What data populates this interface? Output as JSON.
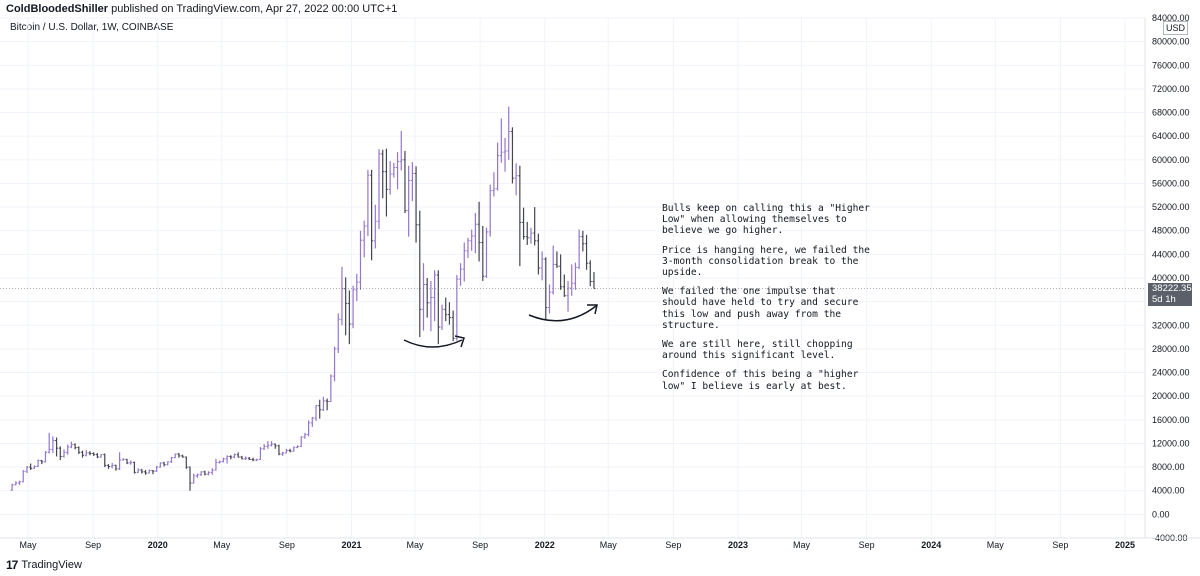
{
  "header": {
    "author": "ColdBloodedShiller",
    "published_text": " published on TradingView.com, Apr 27, 2022 00:00 UTC+1"
  },
  "symbol": "Bitcoin / U.S. Dollar, 1W, COINBASE",
  "currency_badge": "USD",
  "last_price": {
    "value": "38222.35",
    "countdown": "5d 1h"
  },
  "footer": {
    "logo_text": "TradingView",
    "logo_icon": "tradingview-logo-icon"
  },
  "annotation": [
    "Bulls keep on calling this a \"Higher Low\" when allowing themselves to believe we go higher.",
    "Price is hanging here, we failed the 3-month consolidation break to the upside.",
    "We failed the one impulse that should have held to try and secure this low and push away from the structure.",
    "We are still here, still chopping around this significant level.",
    "Confidence of this being a \"higher low\" I believe is early at best."
  ],
  "colors": {
    "up": "#9575cd",
    "down": "#434651",
    "grid": "#f0f3fa",
    "text": "#131722"
  },
  "chart_data": {
    "type": "bar",
    "title": "Bitcoin / U.S. Dollar, 1W, COINBASE",
    "xlabel": "",
    "ylabel": "",
    "ylim": [
      -4000,
      84000
    ],
    "y_ticks": [
      "84000.00",
      "80000.00",
      "76000.00",
      "72000.00",
      "68000.00",
      "64000.00",
      "60000.00",
      "56000.00",
      "52000.00",
      "48000.00",
      "44000.00",
      "40000.00",
      "36000.00",
      "32000.00",
      "28000.00",
      "24000.00",
      "20000.00",
      "16000.00",
      "12000.00",
      "8000.00",
      "4000.00",
      "0.00",
      "-4000.00"
    ],
    "x_ticks": [
      "May",
      "Sep",
      "2020",
      "May",
      "Sep",
      "2021",
      "May",
      "Sep",
      "2022",
      "May",
      "Sep",
      "2023",
      "May",
      "Sep",
      "2024",
      "May",
      "Sep",
      "2025"
    ],
    "x_tick_dates": [
      "2019-05-01",
      "2019-09-01",
      "2020-01-01",
      "2020-05-01",
      "2020-09-01",
      "2021-01-01",
      "2021-05-01",
      "2021-09-01",
      "2022-01-01",
      "2022-05-01",
      "2022-09-01",
      "2023-01-01",
      "2023-05-01",
      "2023-09-01",
      "2024-01-01",
      "2024-05-01",
      "2024-09-01",
      "2025-01-01"
    ],
    "candle_interval": "1W",
    "start_date": "2019-04-01",
    "series": [
      {
        "name": "",
        "ohlc": [
          [
            4100,
            5200,
            4000,
            5000
          ],
          [
            5000,
            5600,
            4900,
            5300
          ],
          [
            5300,
            5700,
            5000,
            5500
          ],
          [
            5500,
            7500,
            5400,
            7300
          ],
          [
            7300,
            8200,
            7000,
            8000
          ],
          [
            8000,
            8600,
            7500,
            7800
          ],
          [
            7800,
            8300,
            7700,
            8100
          ],
          [
            8100,
            9300,
            8000,
            9100
          ],
          [
            9100,
            9200,
            8500,
            8900
          ],
          [
            8900,
            10700,
            8800,
            10500
          ],
          [
            10500,
            13800,
            10300,
            11000
          ],
          [
            11000,
            13200,
            10400,
            12500
          ],
          [
            12500,
            13000,
            9800,
            11200
          ],
          [
            11200,
            11500,
            9200,
            9800
          ],
          [
            9800,
            11000,
            9600,
            10500
          ],
          [
            10500,
            11800,
            10100,
            11400
          ],
          [
            11400,
            12300,
            11200,
            11800
          ],
          [
            11800,
            12000,
            11000,
            11300
          ],
          [
            11300,
            11500,
            10200,
            10500
          ],
          [
            10500,
            10800,
            9600,
            10000
          ],
          [
            10000,
            10900,
            9800,
            10400
          ],
          [
            10400,
            10700,
            10000,
            10300
          ],
          [
            10300,
            10500,
            9900,
            10100
          ],
          [
            10100,
            10400,
            9500,
            9700
          ],
          [
            9700,
            10200,
            9600,
            10100
          ],
          [
            10100,
            10300,
            8000,
            8300
          ],
          [
            8300,
            8500,
            7700,
            8100
          ],
          [
            8100,
            8700,
            7800,
            8300
          ],
          [
            8300,
            8400,
            7400,
            7700
          ],
          [
            7700,
            10500,
            7500,
            9200
          ],
          [
            9200,
            9500,
            9100,
            9300
          ],
          [
            9300,
            9400,
            8500,
            8700
          ],
          [
            8700,
            9100,
            8400,
            8800
          ],
          [
            8800,
            8900,
            6900,
            7100
          ],
          [
            7100,
            7800,
            7000,
            7500
          ],
          [
            7500,
            7700,
            6900,
            7200
          ],
          [
            7200,
            7500,
            6700,
            7000
          ],
          [
            7000,
            7600,
            6900,
            7400
          ],
          [
            7400,
            7500,
            6800,
            7300
          ],
          [
            7300,
            8200,
            7200,
            8000
          ],
          [
            8000,
            8800,
            7900,
            8700
          ],
          [
            8700,
            8900,
            8100,
            8400
          ],
          [
            8400,
            9000,
            8300,
            8900
          ],
          [
            8900,
            9700,
            8700,
            9600
          ],
          [
            9600,
            10300,
            9500,
            10200
          ],
          [
            10200,
            10400,
            9600,
            9900
          ],
          [
            9900,
            10100,
            9600,
            9700
          ],
          [
            9700,
            9800,
            7700,
            8000
          ],
          [
            8000,
            8100,
            4000,
            5300
          ],
          [
            5300,
            6900,
            5200,
            6500
          ],
          [
            6500,
            6900,
            6200,
            6700
          ],
          [
            6700,
            7300,
            6500,
            7200
          ],
          [
            7200,
            7400,
            6600,
            6800
          ],
          [
            6800,
            7300,
            6600,
            7100
          ],
          [
            7100,
            7800,
            6700,
            7500
          ],
          [
            7500,
            9400,
            7400,
            8800
          ],
          [
            8800,
            9100,
            8600,
            8900
          ],
          [
            8900,
            9600,
            8800,
            9400
          ],
          [
            9400,
            10000,
            8600,
            9800
          ],
          [
            9800,
            10000,
            9300,
            9700
          ],
          [
            9700,
            10300,
            9500,
            10100
          ],
          [
            10100,
            10500,
            9600,
            9700
          ],
          [
            9700,
            9900,
            9300,
            9400
          ],
          [
            9400,
            9800,
            9200,
            9500
          ],
          [
            9500,
            9700,
            9200,
            9300
          ],
          [
            9300,
            9600,
            9000,
            9200
          ],
          [
            9200,
            9400,
            9000,
            9300
          ],
          [
            9300,
            11400,
            9200,
            11100
          ],
          [
            11100,
            11900,
            10900,
            11500
          ],
          [
            11500,
            12400,
            11100,
            11700
          ],
          [
            11700,
            12400,
            11500,
            11900
          ],
          [
            11900,
            12000,
            11100,
            11600
          ],
          [
            11600,
            11800,
            10000,
            10200
          ],
          [
            10200,
            10600,
            9900,
            10400
          ],
          [
            10400,
            11100,
            10300,
            10800
          ],
          [
            10800,
            11100,
            10500,
            10700
          ],
          [
            10700,
            11500,
            10600,
            11300
          ],
          [
            11300,
            11700,
            11200,
            11500
          ],
          [
            11500,
            13200,
            11400,
            13100
          ],
          [
            13100,
            13800,
            12800,
            13500
          ],
          [
            13500,
            15900,
            13200,
            15500
          ],
          [
            15500,
            16500,
            14800,
            16300
          ],
          [
            16300,
            18500,
            15800,
            18400
          ],
          [
            18400,
            19400,
            16200,
            17700
          ],
          [
            17700,
            19900,
            17500,
            19200
          ],
          [
            19200,
            19600,
            17600,
            19100
          ],
          [
            19100,
            23700,
            19000,
            23400
          ],
          [
            23400,
            28400,
            22500,
            28000
          ],
          [
            28000,
            34000,
            27300,
            33000
          ],
          [
            33000,
            41900,
            32000,
            38200
          ],
          [
            38200,
            40100,
            30300,
            35700
          ],
          [
            35700,
            37900,
            28800,
            32200
          ],
          [
            32200,
            38700,
            31500,
            38000
          ],
          [
            38000,
            40700,
            36100,
            39300
          ],
          [
            39300,
            48000,
            38000,
            46400
          ],
          [
            46400,
            49700,
            43500,
            48800
          ],
          [
            48800,
            58300,
            47100,
            57400
          ],
          [
            57400,
            58300,
            43000,
            46300
          ],
          [
            46300,
            52400,
            45000,
            49600
          ],
          [
            49600,
            61800,
            48300,
            61000
          ],
          [
            61000,
            61700,
            53500,
            58000
          ],
          [
            58000,
            61900,
            50400,
            55000
          ],
          [
            55000,
            59800,
            54100,
            57600
          ],
          [
            57600,
            59500,
            57000,
            58700
          ],
          [
            58700,
            61300,
            55000,
            59700
          ],
          [
            59700,
            64900,
            58200,
            60000
          ],
          [
            60000,
            61500,
            51000,
            51400
          ],
          [
            51400,
            59000,
            47000,
            56500
          ],
          [
            56500,
            59600,
            53000,
            57700
          ],
          [
            57700,
            58900,
            46000,
            49000
          ],
          [
            49000,
            51400,
            30000,
            34700
          ],
          [
            34700,
            42500,
            31100,
            38900
          ],
          [
            38900,
            40000,
            33300,
            35800
          ],
          [
            35800,
            39500,
            31000,
            36700
          ],
          [
            36700,
            41300,
            32700,
            40500
          ],
          [
            40500,
            41300,
            28800,
            31700
          ],
          [
            31700,
            35500,
            31200,
            34700
          ],
          [
            34700,
            36700,
            32700,
            33800
          ],
          [
            33800,
            35900,
            32100,
            33300
          ],
          [
            33300,
            34500,
            29300,
            29800
          ],
          [
            29800,
            40500,
            29400,
            39800
          ],
          [
            39800,
            42500,
            38700,
            41500
          ],
          [
            41500,
            46000,
            39400,
            44600
          ],
          [
            44600,
            46800,
            43400,
            46300
          ],
          [
            46300,
            48200,
            44600,
            47100
          ],
          [
            47100,
            51000,
            44200,
            49100
          ],
          [
            49100,
            52900,
            42800,
            46000
          ],
          [
            46000,
            48800,
            39500,
            40300
          ],
          [
            40300,
            48500,
            40000,
            47800
          ],
          [
            47800,
            55800,
            47000,
            54800
          ],
          [
            54800,
            57900,
            53800,
            55100
          ],
          [
            55100,
            62900,
            54800,
            60700
          ],
          [
            60700,
            67000,
            59500,
            61300
          ],
          [
            61300,
            63700,
            58000,
            61500
          ],
          [
            61500,
            69000,
            60000,
            64800
          ],
          [
            64800,
            65500,
            56000,
            56900
          ],
          [
            56900,
            59400,
            54000,
            57300
          ],
          [
            57300,
            59000,
            42000,
            49400
          ],
          [
            49400,
            51900,
            46500,
            47000
          ],
          [
            47000,
            49500,
            45600,
            46800
          ],
          [
            46800,
            48500,
            45800,
            47600
          ],
          [
            47600,
            52000,
            45500,
            46300
          ],
          [
            46300,
            47500,
            40600,
            41700
          ],
          [
            41700,
            44500,
            39600,
            43200
          ],
          [
            43200,
            43500,
            33000,
            35000
          ],
          [
            35000,
            38900,
            34000,
            37600
          ],
          [
            37600,
            45500,
            37200,
            42300
          ],
          [
            42300,
            44500,
            41700,
            42000
          ],
          [
            42000,
            44000,
            38000,
            38500
          ],
          [
            38500,
            40600,
            36800,
            37000
          ],
          [
            37000,
            39500,
            34300,
            38300
          ],
          [
            38300,
            42300,
            37000,
            39100
          ],
          [
            39100,
            42600,
            38000,
            41800
          ],
          [
            41800,
            48200,
            41500,
            47000
          ],
          [
            47000,
            48000,
            44500,
            45800
          ],
          [
            45800,
            47300,
            41400,
            42500
          ],
          [
            42500,
            43000,
            38600,
            39400
          ],
          [
            39400,
            41000,
            38200,
            38222.35
          ]
        ]
      }
    ],
    "last_value": 38222.35
  }
}
